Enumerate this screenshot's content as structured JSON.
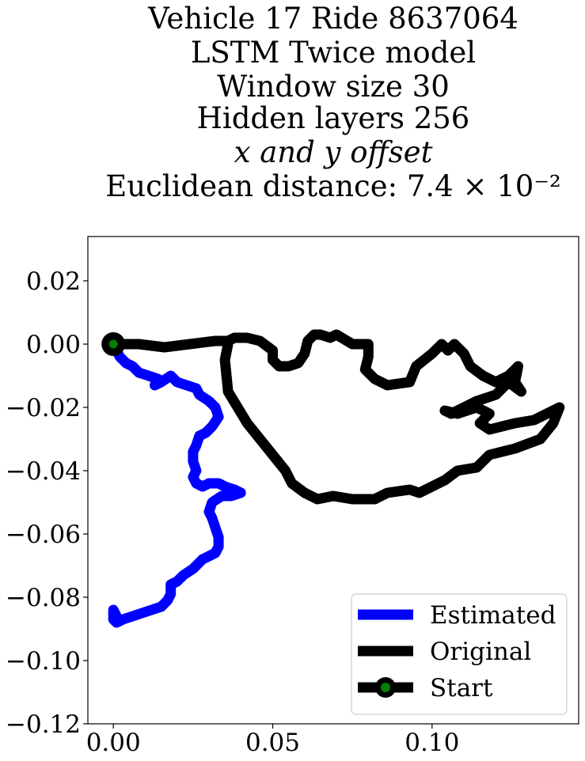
{
  "chart_data": {
    "type": "line",
    "title_lines": [
      "Vehicle 17 Ride 8637064",
      "LSTM Twice model",
      "Window size 30",
      "Hidden layers 256",
      "x and y offset",
      "Euclidean distance: 7.4 × 10⁻²"
    ],
    "xlabel": "",
    "ylabel": "",
    "xlim": [
      -0.008,
      0.146
    ],
    "ylim": [
      -0.12,
      0.034
    ],
    "x_ticks": [
      0.0,
      0.05,
      0.1
    ],
    "x_tick_labels": [
      "0.00",
      "0.05",
      "0.10"
    ],
    "y_ticks": [
      0.02,
      0.0,
      -0.02,
      -0.04,
      -0.06,
      -0.08,
      -0.1,
      -0.12
    ],
    "y_tick_labels": [
      "0.02",
      "0.00",
      "−0.02",
      "−0.04",
      "−0.06",
      "−0.08",
      "−0.10",
      "−0.12"
    ],
    "grid": false,
    "legend_position": "lower-right",
    "series": [
      {
        "name": "Estimated",
        "color": "#0000ff",
        "x": [
          0.0,
          0.002,
          0.004,
          0.006,
          0.008,
          0.011,
          0.014,
          0.013,
          0.015,
          0.018,
          0.02,
          0.023,
          0.026,
          0.027,
          0.03,
          0.032,
          0.033,
          0.031,
          0.029,
          0.027,
          0.026,
          0.025,
          0.025,
          0.026,
          0.025,
          0.026,
          0.028,
          0.03,
          0.033,
          0.035,
          0.038,
          0.04,
          0.037,
          0.034,
          0.031,
          0.03,
          0.031,
          0.032,
          0.033,
          0.033,
          0.032,
          0.03,
          0.028,
          0.025,
          0.022,
          0.02,
          0.018,
          0.018,
          0.017,
          0.016,
          0.015,
          0.012,
          0.009,
          0.006,
          0.003,
          0.001,
          0.0,
          0.0,
          0.0,
          0.001
        ],
        "y": [
          0.0,
          -0.004,
          -0.006,
          -0.007,
          -0.009,
          -0.01,
          -0.011,
          -0.013,
          -0.012,
          -0.01,
          -0.012,
          -0.013,
          -0.014,
          -0.016,
          -0.018,
          -0.02,
          -0.023,
          -0.026,
          -0.028,
          -0.029,
          -0.032,
          -0.034,
          -0.037,
          -0.04,
          -0.042,
          -0.044,
          -0.045,
          -0.044,
          -0.044,
          -0.045,
          -0.046,
          -0.047,
          -0.048,
          -0.048,
          -0.05,
          -0.053,
          -0.055,
          -0.058,
          -0.061,
          -0.064,
          -0.066,
          -0.067,
          -0.068,
          -0.071,
          -0.073,
          -0.075,
          -0.076,
          -0.079,
          -0.081,
          -0.082,
          -0.083,
          -0.084,
          -0.085,
          -0.086,
          -0.087,
          -0.088,
          -0.087,
          -0.085,
          -0.084,
          -0.086
        ]
      },
      {
        "name": "Original",
        "color": "#000000",
        "x": [
          0.0,
          0.008,
          0.016,
          0.024,
          0.032,
          0.036,
          0.038,
          0.042,
          0.046,
          0.05,
          0.05,
          0.052,
          0.055,
          0.058,
          0.06,
          0.061,
          0.063,
          0.065,
          0.068,
          0.07,
          0.075,
          0.08,
          0.08,
          0.079,
          0.082,
          0.086,
          0.093,
          0.095,
          0.1,
          0.103,
          0.105,
          0.107,
          0.11,
          0.112,
          0.116,
          0.12,
          0.124,
          0.127,
          0.126,
          0.128,
          0.124,
          0.12,
          0.114,
          0.106,
          0.104,
          0.108,
          0.114,
          0.118,
          0.115,
          0.118,
          0.126,
          0.132,
          0.136,
          0.14,
          0.138,
          0.134,
          0.126,
          0.118,
          0.114,
          0.108,
          0.104,
          0.1,
          0.096,
          0.093,
          0.086,
          0.082,
          0.075,
          0.069,
          0.064,
          0.06,
          0.056,
          0.054,
          0.05,
          0.046,
          0.042,
          0.036,
          0.035,
          0.036
        ],
        "y": [
          0.0,
          0.0,
          -0.001,
          0.0,
          0.001,
          0.001,
          0.002,
          0.002,
          0.001,
          -0.002,
          -0.005,
          -0.007,
          -0.007,
          -0.006,
          -0.003,
          0.001,
          0.003,
          0.003,
          0.002,
          0.003,
          0.0,
          0.0,
          -0.004,
          -0.008,
          -0.011,
          -0.013,
          -0.012,
          -0.007,
          -0.003,
          0.0,
          -0.002,
          0.0,
          -0.003,
          -0.007,
          -0.01,
          -0.012,
          -0.01,
          -0.007,
          -0.012,
          -0.015,
          -0.012,
          -0.016,
          -0.018,
          -0.022,
          -0.021,
          -0.022,
          -0.02,
          -0.022,
          -0.025,
          -0.027,
          -0.025,
          -0.024,
          -0.022,
          -0.02,
          -0.025,
          -0.03,
          -0.033,
          -0.035,
          -0.039,
          -0.04,
          -0.043,
          -0.045,
          -0.047,
          -0.046,
          -0.047,
          -0.049,
          -0.049,
          -0.048,
          -0.049,
          -0.047,
          -0.044,
          -0.04,
          -0.035,
          -0.03,
          -0.025,
          -0.015,
          -0.005,
          0.0
        ]
      }
    ],
    "start_marker": {
      "name": "Start",
      "x": 0.0,
      "y": 0.0,
      "edge_color": "#000000",
      "face_color": "#008000"
    },
    "legend": [
      {
        "label": "Estimated",
        "color": "#0000ff"
      },
      {
        "label": "Original",
        "color": "#000000"
      },
      {
        "label": "Start",
        "color": "#000000",
        "marker_face": "#008000"
      }
    ]
  }
}
